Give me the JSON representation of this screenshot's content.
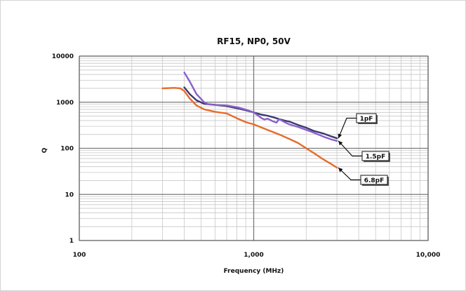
{
  "chart_data": {
    "type": "line",
    "title": "RF15, NP0, 50V",
    "xlabel": "Frequency (MHz)",
    "ylabel": "Q",
    "x_scale": "log",
    "y_scale": "log",
    "xlim": [
      100,
      10000
    ],
    "ylim": [
      1,
      10000
    ],
    "grid": true,
    "x_ticks": [
      {
        "value": 100,
        "label": "100"
      },
      {
        "value": 1000,
        "label": "1,000"
      },
      {
        "value": 10000,
        "label": "10,000"
      }
    ],
    "y_ticks": [
      {
        "value": 1,
        "label": "1"
      },
      {
        "value": 10,
        "label": "10"
      },
      {
        "value": 100,
        "label": "100"
      },
      {
        "value": 1000,
        "label": "1000"
      },
      {
        "value": 10000,
        "label": "10000"
      }
    ],
    "series": [
      {
        "name": "1pF",
        "color": "#3a3a70",
        "x": [
          400,
          430,
          470,
          520,
          600,
          700,
          800,
          900,
          1000,
          1100,
          1200,
          1300,
          1400,
          1500,
          1600,
          1800,
          2000,
          2200,
          2500,
          2800,
          3000
        ],
        "y": [
          2100,
          1500,
          1100,
          920,
          880,
          820,
          740,
          670,
          600,
          540,
          510,
          470,
          430,
          400,
          380,
          320,
          280,
          240,
          210,
          180,
          165
        ]
      },
      {
        "name": "1.5pF",
        "color": "#8a5fc8",
        "x": [
          400,
          430,
          470,
          520,
          550,
          600,
          700,
          800,
          900,
          1000,
          1100,
          1150,
          1200,
          1300,
          1350,
          1400,
          1500,
          1600,
          1800,
          2000,
          2200,
          2500,
          2800,
          3000
        ],
        "y": [
          4400,
          2800,
          1500,
          1000,
          900,
          870,
          850,
          780,
          690,
          600,
          460,
          420,
          440,
          380,
          360,
          430,
          370,
          330,
          290,
          250,
          220,
          180,
          155,
          145
        ]
      },
      {
        "name": "6.8pF",
        "color": "#e86a2a",
        "x": [
          300,
          350,
          380,
          400,
          430,
          470,
          520,
          600,
          700,
          800,
          900,
          1000,
          1200,
          1400,
          1600,
          1800,
          2000,
          2200,
          2500,
          2800,
          3000
        ],
        "y": [
          2000,
          2050,
          2000,
          1750,
          1200,
          850,
          700,
          620,
          570,
          450,
          370,
          330,
          250,
          200,
          160,
          130,
          100,
          80,
          58,
          45,
          38
        ]
      }
    ],
    "annotations": [
      {
        "text": "1pF",
        "points_to": {
          "series": "1pF",
          "x": 3000,
          "y": 165
        }
      },
      {
        "text": "1.5pF",
        "points_to": {
          "series": "1.5pF",
          "x": 3000,
          "y": 145
        }
      },
      {
        "text": "6.8pF",
        "points_to": {
          "series": "6.8pF",
          "x": 3000,
          "y": 38
        }
      }
    ]
  }
}
